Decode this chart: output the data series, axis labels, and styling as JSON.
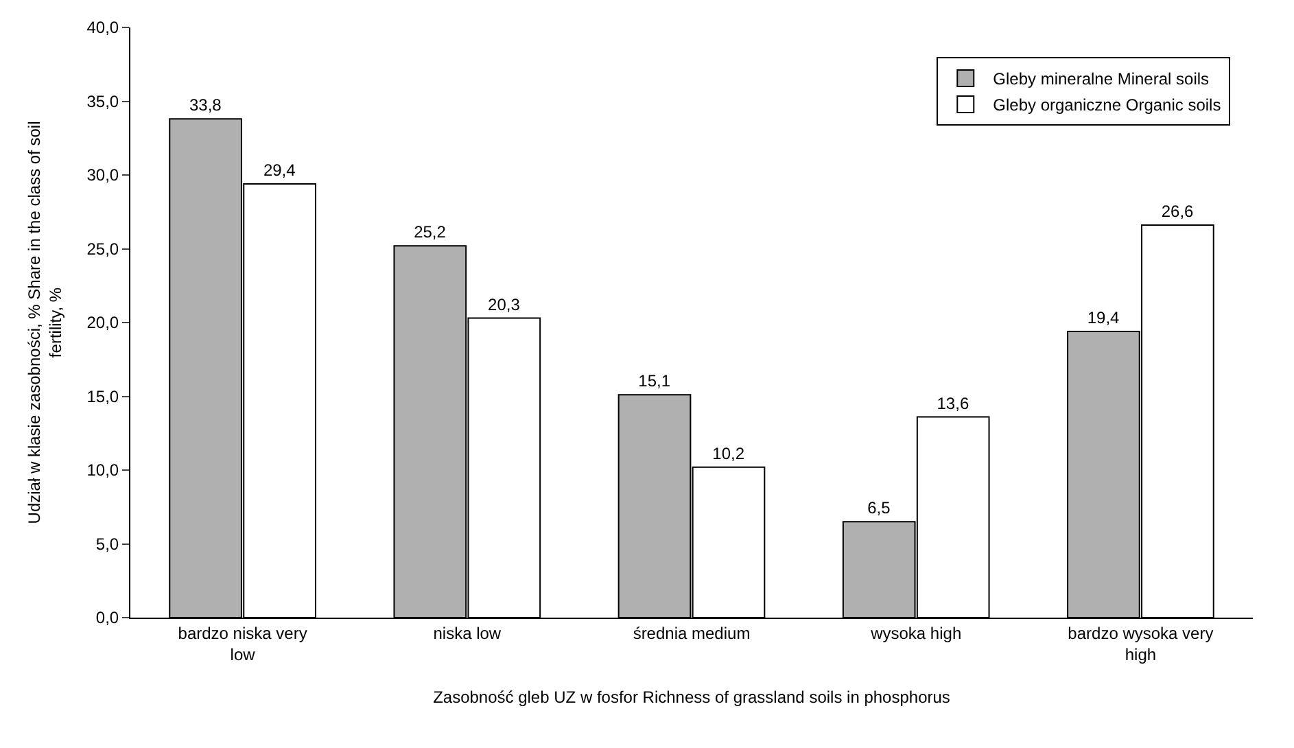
{
  "chart_data": {
    "type": "bar",
    "xlabel": "Zasobność gleb UZ w fosfor Richness of grassland soils in phosphorus",
    "ylabel": "Udział w klasie zasobności, % Share in the class of soil fertility, %",
    "categories": [
      "bardzo niska very low",
      "niska low",
      "średnia medium",
      "wysoka high",
      "bardzo wysoka very high"
    ],
    "series": [
      {
        "name": "Gleby mineralne Mineral soils",
        "color": "#b0b0b0",
        "values": [
          33.8,
          25.2,
          15.1,
          6.5,
          19.4
        ],
        "value_labels": [
          "33,8",
          "25,2",
          "15,1",
          "6,5",
          "19,4"
        ]
      },
      {
        "name": "Gleby organiczne Organic soils",
        "color": "#ffffff",
        "values": [
          29.4,
          20.3,
          10.2,
          13.6,
          26.6
        ],
        "value_labels": [
          "29,4",
          "20,3",
          "10,2",
          "13,6",
          "26,6"
        ]
      }
    ],
    "ylim": [
      0,
      40
    ],
    "yticks": [
      {
        "value": 0,
        "label": "0,0"
      },
      {
        "value": 5,
        "label": "5,0"
      },
      {
        "value": 10,
        "label": "10,0"
      },
      {
        "value": 15,
        "label": "15,0"
      },
      {
        "value": 20,
        "label": "20,0"
      },
      {
        "value": 25,
        "label": "25,0"
      },
      {
        "value": 30,
        "label": "30,0"
      },
      {
        "value": 35,
        "label": "35,0"
      },
      {
        "value": 40,
        "label": "40,0"
      }
    ],
    "legend": "top right"
  }
}
